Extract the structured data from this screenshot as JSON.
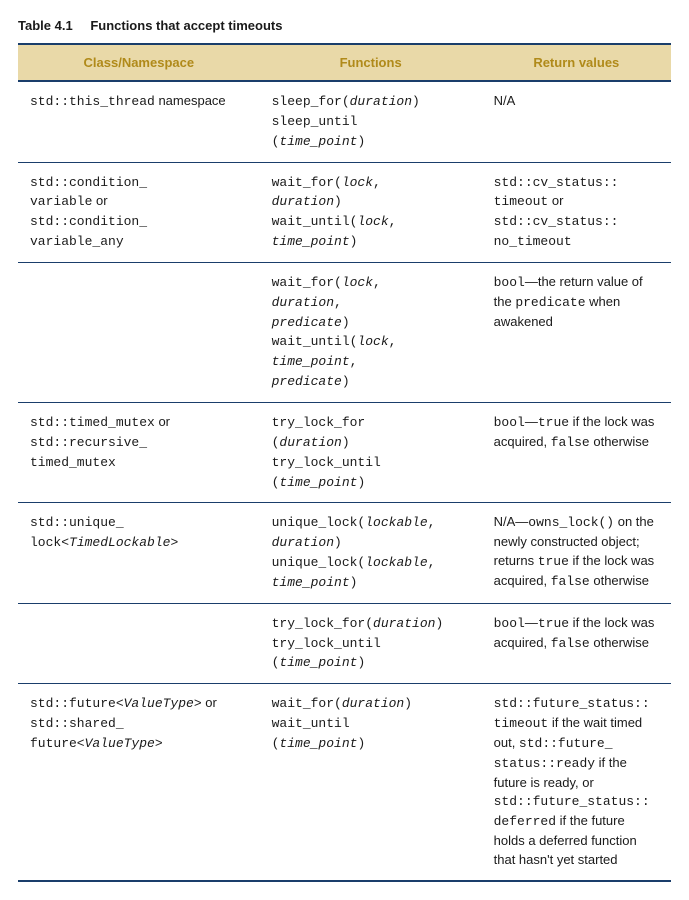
{
  "caption": {
    "label": "Table 4.1",
    "title": "Functions that accept timeouts"
  },
  "headers": {
    "col1": "Class/Namespace",
    "col2": "Functions",
    "col3": "Return values"
  },
  "rows": {
    "r1": {
      "c1": [
        {
          "t": "std::this_thread",
          "cls": "code"
        },
        {
          "t": " namespace"
        }
      ],
      "c2": [
        {
          "t": "sleep_for(",
          "cls": "code"
        },
        {
          "t": "duration",
          "cls": "code ital"
        },
        {
          "t": ")",
          "cls": "code"
        },
        {
          "br": true
        },
        {
          "t": "sleep_until",
          "cls": "code"
        },
        {
          "br": true
        },
        {
          "t": "(",
          "cls": "code"
        },
        {
          "t": "time_point",
          "cls": "code ital"
        },
        {
          "t": ")",
          "cls": "code"
        }
      ],
      "c3": [
        {
          "t": "N/A"
        }
      ]
    },
    "r2": {
      "c1": [
        {
          "t": "std::condition_",
          "cls": "code"
        },
        {
          "br": true
        },
        {
          "t": "variable",
          "cls": "code"
        },
        {
          "t": " or"
        },
        {
          "br": true
        },
        {
          "t": "std::condition_",
          "cls": "code"
        },
        {
          "br": true
        },
        {
          "t": "variable_any",
          "cls": "code"
        }
      ],
      "c2": [
        {
          "t": "wait_for(",
          "cls": "code"
        },
        {
          "t": "lock",
          "cls": "code ital"
        },
        {
          "t": ",",
          "cls": "code"
        },
        {
          "br": true
        },
        {
          "t": "duration",
          "cls": "code ital"
        },
        {
          "t": ")",
          "cls": "code"
        },
        {
          "br": true
        },
        {
          "t": "wait_until(",
          "cls": "code"
        },
        {
          "t": "lock",
          "cls": "code ital"
        },
        {
          "t": ",",
          "cls": "code"
        },
        {
          "br": true
        },
        {
          "t": "time_point",
          "cls": "code ital"
        },
        {
          "t": ")",
          "cls": "code"
        }
      ],
      "c3": [
        {
          "t": "std::cv_status::",
          "cls": "code"
        },
        {
          "br": true
        },
        {
          "t": "timeout",
          "cls": "code"
        },
        {
          "t": " or"
        },
        {
          "br": true
        },
        {
          "t": "std::cv_status::",
          "cls": "code"
        },
        {
          "br": true
        },
        {
          "t": "no_timeout",
          "cls": "code"
        }
      ]
    },
    "r3": {
      "c1": [],
      "c2": [
        {
          "t": "wait_for(",
          "cls": "code"
        },
        {
          "t": "lock",
          "cls": "code ital"
        },
        {
          "t": ",",
          "cls": "code"
        },
        {
          "br": true
        },
        {
          "t": "duration",
          "cls": "code ital"
        },
        {
          "t": ",",
          "cls": "code"
        },
        {
          "br": true
        },
        {
          "t": "predicate",
          "cls": "code ital"
        },
        {
          "t": ")",
          "cls": "code"
        },
        {
          "br": true
        },
        {
          "t": "wait_until(",
          "cls": "code"
        },
        {
          "t": "lock",
          "cls": "code ital"
        },
        {
          "t": ",",
          "cls": "code"
        },
        {
          "br": true
        },
        {
          "t": "time_point",
          "cls": "code ital"
        },
        {
          "t": ",",
          "cls": "code"
        },
        {
          "br": true
        },
        {
          "t": "predicate",
          "cls": "code ital"
        },
        {
          "t": ")",
          "cls": "code"
        }
      ],
      "c3": [
        {
          "t": "bool",
          "cls": "code"
        },
        {
          "t": "—the return value of the "
        },
        {
          "t": "predicate",
          "cls": "code"
        },
        {
          "t": " when awakened"
        }
      ]
    },
    "r4": {
      "c1": [
        {
          "t": "std::timed_mutex",
          "cls": "code"
        },
        {
          "t": " or"
        },
        {
          "br": true
        },
        {
          "t": "std::recursive_",
          "cls": "code"
        },
        {
          "br": true
        },
        {
          "t": "timed_mutex",
          "cls": "code"
        }
      ],
      "c2": [
        {
          "t": "try_lock_for",
          "cls": "code"
        },
        {
          "br": true
        },
        {
          "t": "(",
          "cls": "code"
        },
        {
          "t": "duration",
          "cls": "code ital"
        },
        {
          "t": ")",
          "cls": "code"
        },
        {
          "br": true
        },
        {
          "t": "try_lock_until",
          "cls": "code"
        },
        {
          "br": true
        },
        {
          "t": "(",
          "cls": "code"
        },
        {
          "t": "time_point",
          "cls": "code ital"
        },
        {
          "t": ")",
          "cls": "code"
        }
      ],
      "c3": [
        {
          "t": "bool",
          "cls": "code"
        },
        {
          "t": "—"
        },
        {
          "t": "true",
          "cls": "code"
        },
        {
          "t": " if the lock was acquired, "
        },
        {
          "t": "false",
          "cls": "code"
        },
        {
          "t": " otherwise"
        }
      ]
    },
    "r5": {
      "c1": [
        {
          "t": "std::unique_",
          "cls": "code"
        },
        {
          "br": true
        },
        {
          "t": "lock<",
          "cls": "code"
        },
        {
          "t": "TimedLockable",
          "cls": "code ital"
        },
        {
          "t": ">",
          "cls": "code"
        }
      ],
      "c2": [
        {
          "t": "unique_lock(",
          "cls": "code"
        },
        {
          "t": "lockable",
          "cls": "code ital"
        },
        {
          "t": ",",
          "cls": "code"
        },
        {
          "br": true
        },
        {
          "t": "duration",
          "cls": "code ital"
        },
        {
          "t": ")",
          "cls": "code"
        },
        {
          "br": true
        },
        {
          "t": "unique_lock(",
          "cls": "code"
        },
        {
          "t": "lockable",
          "cls": "code ital"
        },
        {
          "t": ",",
          "cls": "code"
        },
        {
          "br": true
        },
        {
          "t": "time_point",
          "cls": "code ital"
        },
        {
          "t": ")",
          "cls": "code"
        }
      ],
      "c3": [
        {
          "t": "N/A—"
        },
        {
          "t": "owns_lock()",
          "cls": "code"
        },
        {
          "t": " on the newly constructed object; returns "
        },
        {
          "t": "true",
          "cls": "code"
        },
        {
          "t": " if the lock was acquired, "
        },
        {
          "t": "false",
          "cls": "code"
        },
        {
          "t": " otherwise"
        }
      ]
    },
    "r6": {
      "c1": [],
      "c2": [
        {
          "t": "try_lock_for(",
          "cls": "code"
        },
        {
          "t": "duration",
          "cls": "code ital"
        },
        {
          "t": ")",
          "cls": "code"
        },
        {
          "br": true
        },
        {
          "t": "try_lock_until",
          "cls": "code"
        },
        {
          "br": true
        },
        {
          "t": "(",
          "cls": "code"
        },
        {
          "t": "time_point",
          "cls": "code ital"
        },
        {
          "t": ")",
          "cls": "code"
        }
      ],
      "c3": [
        {
          "t": "bool",
          "cls": "code"
        },
        {
          "t": "—"
        },
        {
          "t": "true",
          "cls": "code"
        },
        {
          "t": " if the lock was acquired, "
        },
        {
          "t": "false",
          "cls": "code"
        },
        {
          "t": " otherwise"
        }
      ]
    },
    "r7": {
      "c1": [
        {
          "t": "std::future<",
          "cls": "code"
        },
        {
          "t": "ValueType",
          "cls": "code ital"
        },
        {
          "t": ">",
          "cls": "code"
        },
        {
          "t": " or"
        },
        {
          "br": true
        },
        {
          "t": "std::shared_",
          "cls": "code"
        },
        {
          "br": true
        },
        {
          "t": "future<",
          "cls": "code"
        },
        {
          "t": "ValueType",
          "cls": "code ital"
        },
        {
          "t": ">",
          "cls": "code"
        }
      ],
      "c2": [
        {
          "t": "wait_for(",
          "cls": "code"
        },
        {
          "t": "duration",
          "cls": "code ital"
        },
        {
          "t": ")",
          "cls": "code"
        },
        {
          "br": true
        },
        {
          "t": "wait_until",
          "cls": "code"
        },
        {
          "br": true
        },
        {
          "t": "(",
          "cls": "code"
        },
        {
          "t": "time_point",
          "cls": "code ital"
        },
        {
          "t": ")",
          "cls": "code"
        }
      ],
      "c3": [
        {
          "t": "std::future_status::",
          "cls": "code"
        },
        {
          "br": true
        },
        {
          "t": "timeout",
          "cls": "code"
        },
        {
          "t": " if the wait timed out, "
        },
        {
          "t": "std::future_",
          "cls": "code"
        },
        {
          "br": true
        },
        {
          "t": "status::ready",
          "cls": "code"
        },
        {
          "t": " if the future is ready, or "
        },
        {
          "t": "std::future_status::",
          "cls": "code"
        },
        {
          "br": true
        },
        {
          "t": "deferred",
          "cls": "code"
        },
        {
          "t": " if the future holds a deferred function that hasn't yet started"
        }
      ]
    }
  }
}
